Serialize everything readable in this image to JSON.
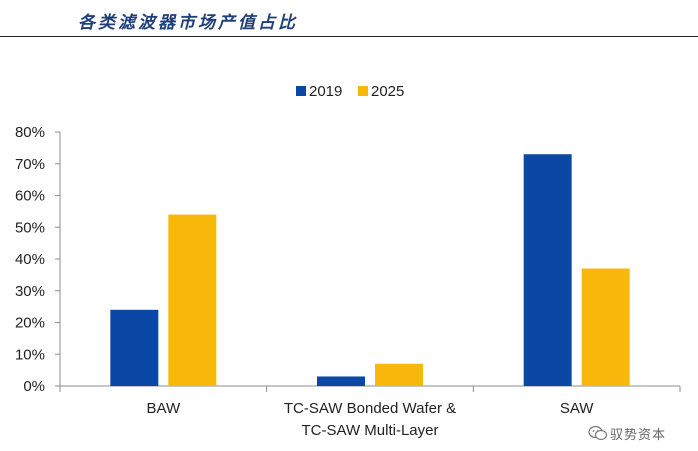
{
  "header": {
    "title": "各类滤波器市场产值占比"
  },
  "watermark": {
    "text": "驭势资本"
  },
  "chart_data": {
    "type": "bar",
    "title": "",
    "xlabel": "",
    "ylabel": "",
    "categories": [
      [
        "BAW"
      ],
      [
        "TC-SAW Bonded Wafer &",
        "TC-SAW Multi-Layer"
      ],
      [
        "SAW"
      ]
    ],
    "series": [
      {
        "name": "2019",
        "color": "#0b47a5",
        "values": [
          24,
          3,
          73
        ]
      },
      {
        "name": "2025",
        "color": "#f8b80b",
        "values": [
          54,
          7,
          37
        ]
      }
    ],
    "ylim": [
      0,
      80
    ],
    "yticks": [
      0,
      10,
      20,
      30,
      40,
      50,
      60,
      70,
      80
    ],
    "ytick_format": "percent",
    "grid": false,
    "legend": "top-center"
  }
}
